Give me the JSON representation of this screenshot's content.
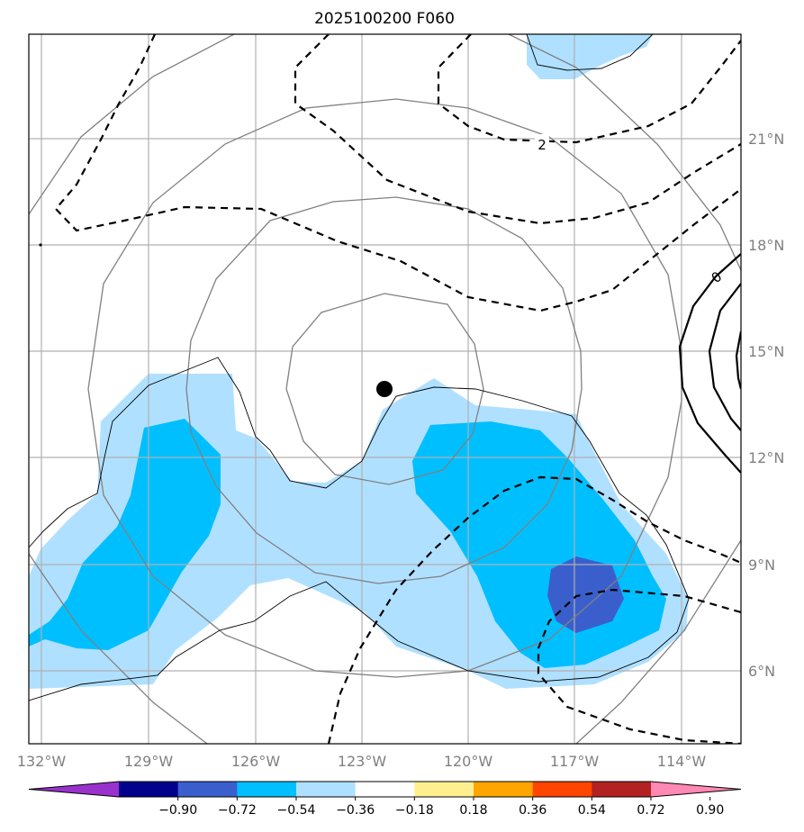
{
  "title": "2025100200 F060",
  "map": {
    "lon_labels": [
      "132°W",
      "129°W",
      "126°W",
      "123°W",
      "120°W",
      "117°W",
      "114°W"
    ],
    "lat_labels": [
      "21°N",
      "18°N",
      "15°N",
      "12°N",
      "9°N",
      "6°N"
    ],
    "contour_labels": [
      "2",
      "0"
    ],
    "center_marker": {
      "lon": -122.3,
      "lat": 13.9
    }
  },
  "colorbar": {
    "ticks": [
      "−0.90",
      "−0.72",
      "−0.54",
      "−0.36",
      "−0.18",
      "0.18",
      "0.36",
      "0.54",
      "0.72",
      "0.90"
    ],
    "colors": [
      "#9932cc",
      "#00008b",
      "#3a5fcd",
      "#00bfff",
      "#b0e0ff",
      "#ffffff",
      "#fff08f",
      "#ffa500",
      "#ff4500",
      "#b22222",
      "#ff88b4"
    ]
  },
  "colors": {
    "shade_light": "#b0e0ff",
    "shade_mid": "#00bfff",
    "shade_dark": "#3a5fcd",
    "grid": "#b0b0b0",
    "ring": "#808080"
  }
}
